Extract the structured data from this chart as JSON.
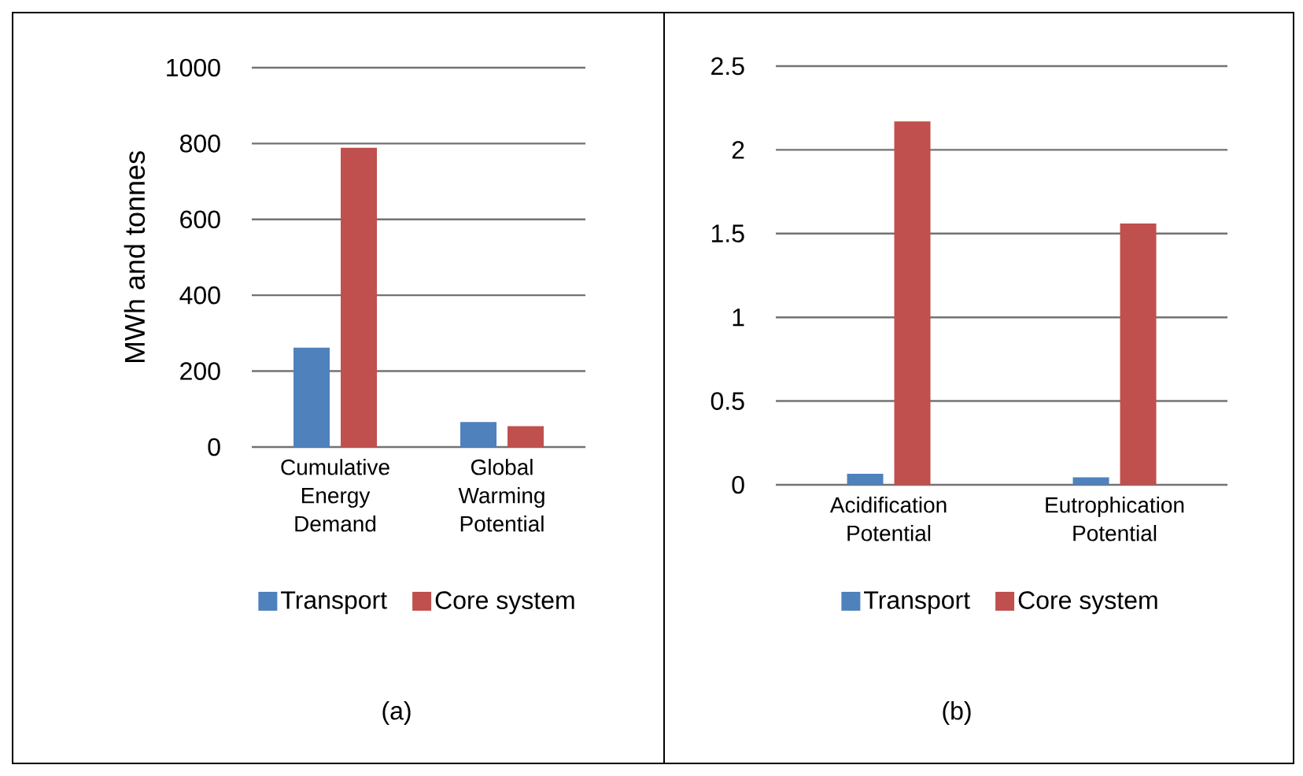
{
  "chart_data": [
    {
      "type": "bar",
      "ylabel": "MWh and tonnes",
      "categories": [
        "Cumulative Energy Demand",
        "Global Warming Potential"
      ],
      "series": [
        {
          "name": "Transport",
          "color": "#4f81bd",
          "values": [
            262,
            66
          ]
        },
        {
          "name": "Core system",
          "color": "#c0504d",
          "values": [
            789,
            55
          ]
        }
      ],
      "ylim": [
        0,
        1000
      ],
      "yticks": [
        0,
        200,
        400,
        600,
        800,
        1000
      ],
      "grid": "y",
      "legend": "bottom",
      "annotations": [
        "(a)"
      ]
    },
    {
      "type": "bar",
      "categories": [
        "Acidification Potential",
        "Eutrophication Potential"
      ],
      "series": [
        {
          "name": "Transport",
          "color": "#4f81bd",
          "values": [
            0.066,
            0.044
          ]
        },
        {
          "name": "Core system",
          "color": "#c0504d",
          "values": [
            2.17,
            1.56
          ]
        }
      ],
      "ylim": [
        0,
        2.5
      ],
      "yticks": [
        0,
        0.5,
        1,
        1.5,
        2,
        2.5
      ],
      "grid": "y",
      "legend": "bottom",
      "annotations": [
        "(b)"
      ]
    }
  ]
}
